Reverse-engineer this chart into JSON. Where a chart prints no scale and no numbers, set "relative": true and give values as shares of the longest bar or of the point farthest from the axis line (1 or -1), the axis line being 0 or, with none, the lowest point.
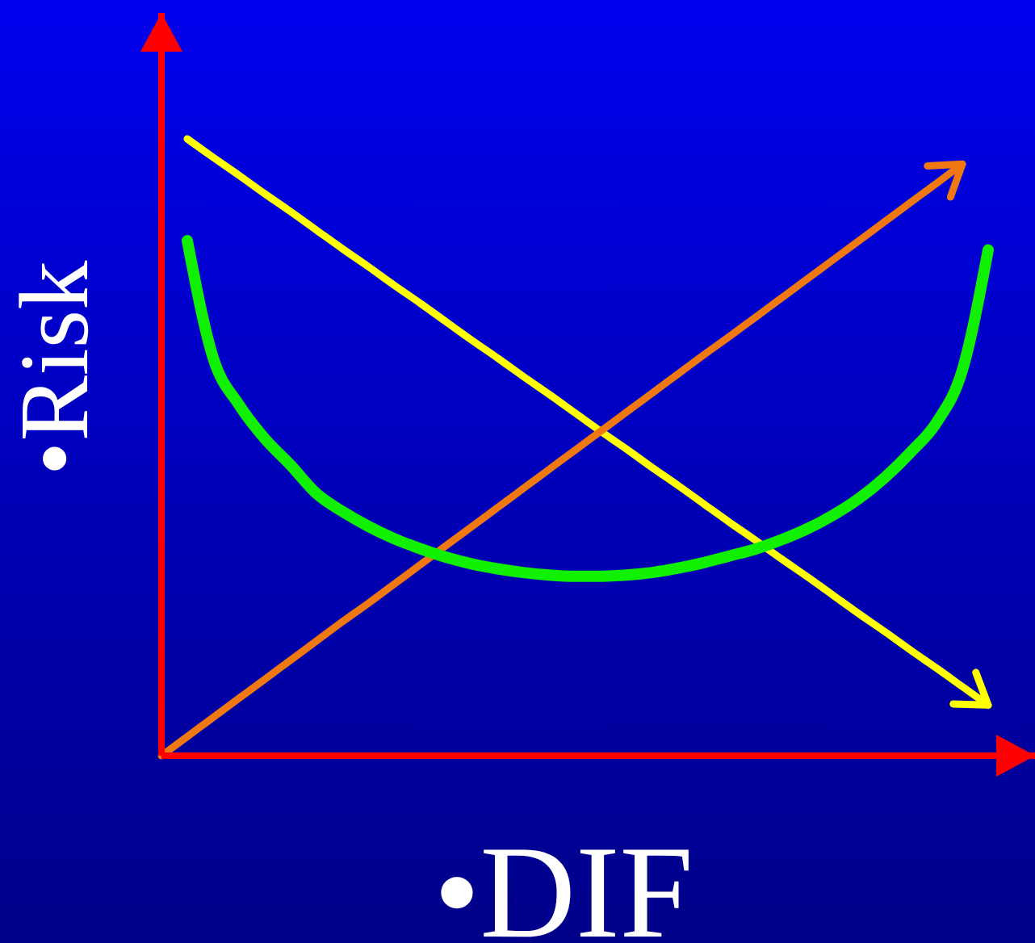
{
  "chart_data": {
    "type": "line",
    "relative": true,
    "xlabel": "•DIF",
    "ylabel": "•Risk",
    "line_style": "solid",
    "categories": [
      null,
      null,
      null,
      null,
      null,
      null,
      null,
      null,
      null,
      null,
      null,
      null,
      null,
      null,
      null,
      null,
      null,
      null,
      null,
      null,
      null,
      null,
      null,
      null,
      null,
      null,
      null,
      null,
      null,
      null,
      null,
      null,
      null
    ],
    "series": [
      {
        "color": "#ffff00",
        "values": [
          null,
          1,
          0.97,
          0.941,
          0.911,
          0.882,
          0.852,
          0.822,
          0.793,
          0.763,
          0.734,
          0.704,
          0.674,
          0.645,
          0.615,
          0.586,
          0.556,
          0.526,
          0.497,
          0.467,
          0.438,
          0.408,
          0.378,
          0.349,
          0.319,
          0.29,
          0.26,
          0.23,
          0.201,
          0.171,
          0.142,
          0.112,
          0.082
        ]
      },
      {
        "color": "#f07810",
        "values": [
          0,
          0.031,
          0.062,
          0.093,
          0.124,
          0.155,
          0.186,
          0.217,
          0.247,
          0.278,
          0.309,
          0.34,
          0.371,
          0.402,
          0.433,
          0.464,
          0.495,
          0.526,
          0.557,
          0.588,
          0.619,
          0.65,
          0.68,
          0.711,
          0.742,
          0.773,
          0.804,
          0.835,
          0.866,
          0.897,
          0.928,
          0.959,
          null
        ]
      },
      {
        "color": "#10f000",
        "values": [
          null,
          0.835,
          0.645,
          0.569,
          0.514,
          0.471,
          0.425,
          0.396,
          0.372,
          0.352,
          0.336,
          0.322,
          0.311,
          0.303,
          0.297,
          0.293,
          0.291,
          0.291,
          0.293,
          0.297,
          0.304,
          0.313,
          0.324,
          0.335,
          0.35,
          0.368,
          0.39,
          0.417,
          0.451,
          0.492,
          0.54,
          0.625,
          0.82
        ]
      }
    ]
  }
}
